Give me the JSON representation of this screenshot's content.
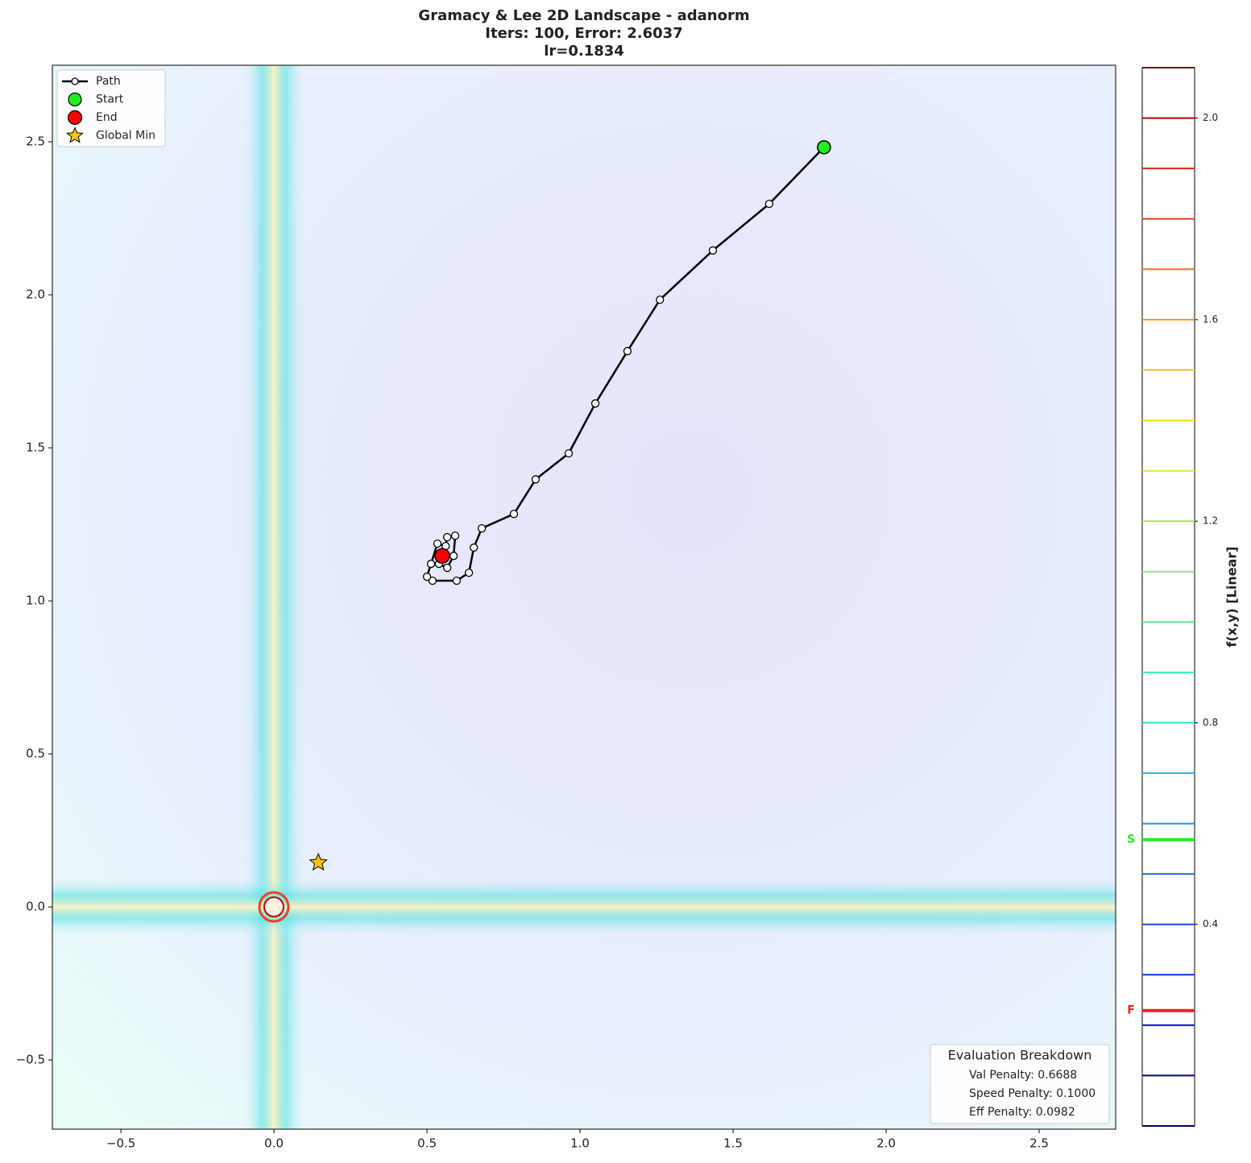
{
  "chart_data": {
    "type": "contour",
    "title": [
      "Gramacy & Lee 2D Landscape - adanorm",
      "Iters: 100, Error: 2.6037",
      "lr=0.1834"
    ],
    "xlim": [
      -0.724,
      2.75
    ],
    "ylim": [
      -0.726,
      2.75
    ],
    "xticks": [
      {
        "value": -0.5,
        "label": "−0.5"
      },
      {
        "value": 0,
        "label": "0.0"
      },
      0.5,
      {
        "value": 1,
        "label": "1.0"
      },
      1.5,
      {
        "value": 2,
        "label": "2.0"
      },
      2.5
    ],
    "yticks": [
      {
        "value": -0.5,
        "label": "−0.5"
      },
      {
        "value": 0,
        "label": "0.0"
      },
      0.5,
      {
        "value": 1,
        "label": "1.0"
      },
      1.5,
      {
        "value": 2,
        "label": "2.0"
      },
      2.5
    ],
    "path": {
      "name": "Path",
      "color": "#000000",
      "x": [
        1.797,
        1.618,
        1.434,
        1.261,
        1.155,
        1.05,
        0.963,
        0.855,
        0.784,
        0.679,
        0.653,
        0.637,
        0.597,
        0.518,
        0.5,
        0.513,
        0.534,
        0.561,
        0.566,
        0.592,
        0.587,
        0.566,
        0.539,
        0.55
      ],
      "y": [
        2.482,
        2.297,
        2.145,
        1.984,
        1.816,
        1.645,
        1.482,
        1.397,
        1.284,
        1.237,
        1.174,
        1.092,
        1.066,
        1.066,
        1.079,
        1.121,
        1.187,
        1.179,
        1.208,
        1.213,
        1.147,
        1.108,
        1.121,
        1.147
      ]
    },
    "start": {
      "name": "Start",
      "color": "#22ee22",
      "x": 1.797,
      "y": 2.482
    },
    "end": {
      "name": "End",
      "color": "#ff0000",
      "x": 0.55,
      "y": 1.147
    },
    "global_min": {
      "name": "Global Min",
      "color": "#f5c518",
      "x": 0.145,
      "y": 0.145
    },
    "legend": "upper left",
    "evaluation": {
      "title": "Evaluation Breakdown",
      "lines": [
        "Val Penalty: 0.6688",
        "Speed Penalty: 0.1000",
        "Eff Penalty: 0.0982"
      ]
    },
    "colorbar": {
      "label": "f(x,y) [Linear]",
      "lim": [
        0,
        2.1
      ],
      "ticks": [
        0.4,
        0.8,
        1.2,
        1.6,
        {
          "value": 2,
          "label": "2.0"
        }
      ],
      "levels": [
        0,
        0.1,
        0.2,
        0.3,
        0.4,
        0.5,
        0.6,
        0.7,
        0.8,
        0.9,
        1,
        1.1,
        1.2,
        1.3,
        1.4,
        1.5,
        1.6,
        1.7,
        1.8,
        1.9,
        2,
        2.1
      ],
      "colors": [
        "#00006e",
        "#00009a",
        "#0a0ad8",
        "#1530e0",
        "#1f4fd0",
        "#1f6fd8",
        "#1e90e8",
        "#17c0e8",
        "#20e0d0",
        "#30f0b0",
        "#50f090",
        "#80f070",
        "#a0f050",
        "#d0f030",
        "#f0e020",
        "#f8c020",
        "#f89020",
        "#f07020",
        "#e84020",
        "#e02010",
        "#b00000",
        "#700000"
      ],
      "markers": [
        {
          "label": "S",
          "value": 0.568,
          "color": "#22ee22"
        },
        {
          "label": "F",
          "value": 0.229,
          "color": "#ee2222"
        }
      ]
    }
  }
}
